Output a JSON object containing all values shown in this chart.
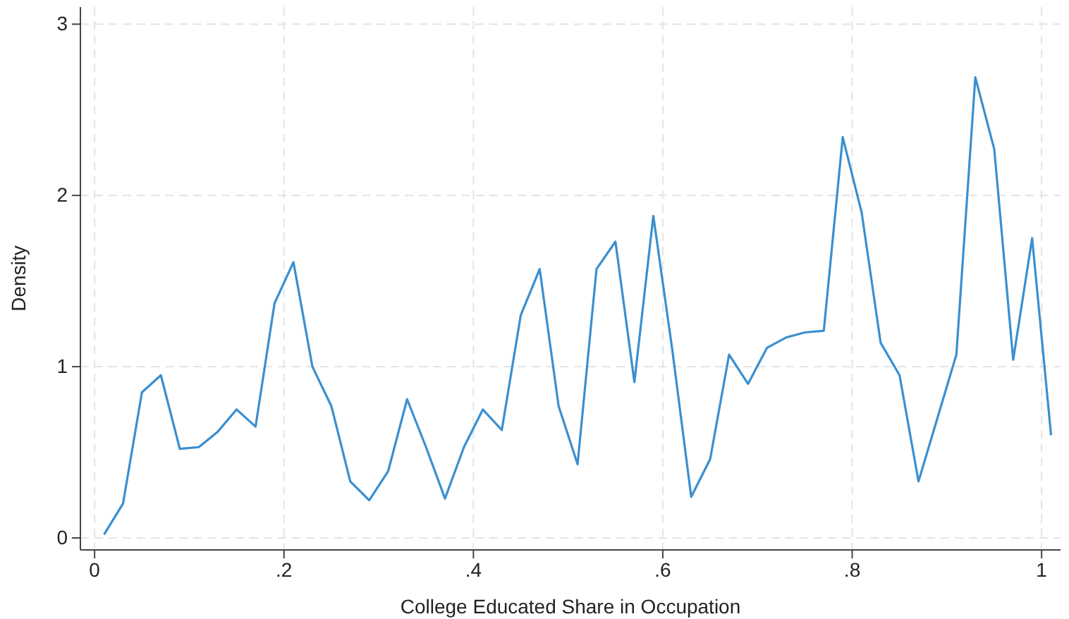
{
  "chart_data": {
    "type": "line",
    "xlabel": "College Educated Share in Occupation",
    "ylabel": "Density",
    "x": [
      0.01,
      0.03,
      0.05,
      0.07,
      0.09,
      0.11,
      0.13,
      0.15,
      0.17,
      0.19,
      0.21,
      0.23,
      0.25,
      0.27,
      0.29,
      0.31,
      0.33,
      0.35,
      0.37,
      0.39,
      0.41,
      0.43,
      0.45,
      0.47,
      0.49,
      0.51,
      0.53,
      0.55,
      0.57,
      0.59,
      0.61,
      0.63,
      0.65,
      0.67,
      0.69,
      0.71,
      0.73,
      0.75,
      0.77,
      0.79,
      0.81,
      0.83,
      0.85,
      0.87,
      0.89,
      0.91,
      0.93,
      0.95,
      0.97,
      0.99,
      1.01
    ],
    "series": [
      {
        "color": "#3a8fd0",
        "values": [
          0.02,
          0.2,
          0.85,
          0.95,
          0.52,
          0.53,
          0.62,
          0.75,
          0.65,
          1.37,
          1.61,
          1.0,
          0.77,
          0.33,
          0.22,
          0.39,
          0.81,
          0.53,
          0.23,
          0.53,
          0.75,
          0.63,
          1.3,
          1.57,
          0.77,
          0.43,
          1.57,
          1.73,
          0.91,
          1.88,
          1.1,
          0.24,
          0.46,
          1.07,
          0.9,
          1.11,
          1.17,
          1.2,
          1.21,
          2.34,
          1.9,
          1.14,
          0.95,
          0.33,
          0.7,
          1.07,
          2.69,
          2.27,
          1.04,
          1.75,
          0.6
        ]
      }
    ],
    "xlim": [
      -0.015,
      1.02
    ],
    "ylim": [
      -0.07,
      3.1
    ],
    "xticks": [
      0,
      {
        "value": 0.2,
        "label": ".2"
      },
      {
        "value": 0.4,
        "label": ".4"
      },
      {
        "value": 0.6,
        "label": ".6"
      },
      {
        "value": 0.8,
        "label": ".8"
      },
      1
    ],
    "yticks": [
      0,
      1,
      2,
      3
    ],
    "grid": true,
    "marker": "none",
    "line_style": "solid"
  }
}
